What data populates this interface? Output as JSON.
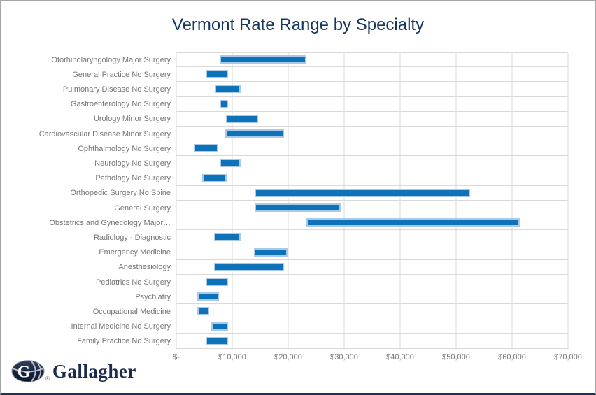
{
  "chart_data": {
    "type": "bar",
    "variant": "horizontal-floating-range",
    "orientation": "horizontal",
    "title": "Vermont Rate Range by Specialty",
    "xlabel": "",
    "ylabel": "",
    "grid": true,
    "xlim": [
      0,
      70000
    ],
    "ticks": [
      0,
      10000,
      20000,
      30000,
      40000,
      50000,
      60000,
      70000
    ],
    "tick_labels": [
      "$-",
      "$10,000",
      "$20,000",
      "$30,000",
      "$40,000",
      "$50,000",
      "$60,000",
      "$70,000"
    ],
    "categories": [
      "Otorhinolaryngology Major Surgery",
      "General Practice No Surgery",
      "Pulmonary Disease No Surgery",
      "Gastroenterology No Surgery",
      "Urology Minor Surgery",
      "Cardiovascular Disease Minor Surgery",
      "Ophthalmology No Surgery",
      "Neurology No Surgery",
      "Pathology No Surgery",
      "Orthopedic Surgery No Spine",
      "General Surgery",
      "Obstetrics and Gynecology Major…",
      "Radiology - Diagnostic",
      "Emergency Medicine",
      "Anesthesiology",
      "Pediatrics No Surgery",
      "Psychiatry",
      "Occupational Medicine",
      "Internal Medicine No Surgery",
      "Family Practice No Surgery"
    ],
    "series": [
      {
        "name": "Range Min",
        "values": [
          7800,
          5200,
          6900,
          7800,
          8900,
          8750,
          3100,
          7800,
          4600,
          14000,
          14000,
          23200,
          6700,
          13900,
          6700,
          5200,
          3700,
          3700,
          6250,
          5200
        ]
      },
      {
        "name": "Range Max",
        "values": [
          22800,
          8750,
          11000,
          8750,
          14100,
          18700,
          7000,
          11000,
          8500,
          52000,
          28900,
          60900,
          11000,
          19400,
          18700,
          8750,
          7100,
          5400,
          8800,
          8800
        ]
      }
    ],
    "legend_position": "none"
  },
  "logo": {
    "wordmark": "Gallagher",
    "icon": "gallagher-globe-icon",
    "registered_mark": "®"
  },
  "colors": {
    "bar_fill": "#0e72b8",
    "bar_border": "#a9c9e9",
    "gridline": "#d9d9d9",
    "title_text": "#17365d",
    "axis_text": "#757575",
    "logo_navy": "#1b2c4e"
  }
}
